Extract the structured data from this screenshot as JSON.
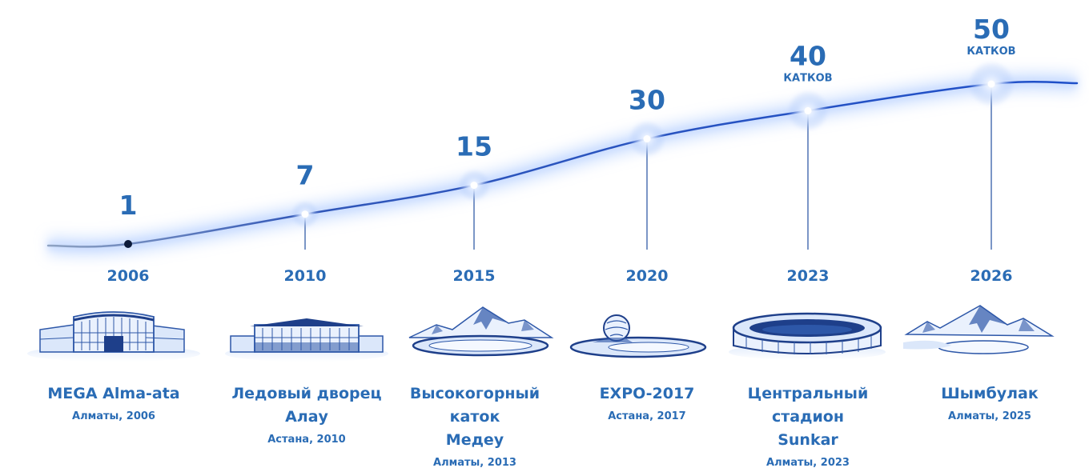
{
  "chart_data": {
    "type": "line",
    "title": "",
    "xlabel": "",
    "ylabel": "",
    "x": [
      "2006",
      "2010",
      "2015",
      "2020",
      "2023",
      "2026"
    ],
    "series": [
      {
        "values": [
          1,
          7,
          15,
          30,
          40,
          50
        ]
      }
    ],
    "value_labels": [
      "1",
      "7",
      "15",
      "30",
      "40",
      "50"
    ],
    "unit_labels": [
      "",
      "",
      "",
      "",
      "катков",
      "катков"
    ],
    "grid": false,
    "line_color": "#1e4fc9",
    "glow_color": "#a9c8ff",
    "text_color": "#2a6cb5"
  },
  "venues": [
    {
      "name_lines": [
        "MEGA Alma-ata"
      ],
      "location": "Алматы, 2006",
      "icon": "mall-building-icon"
    },
    {
      "name_lines": [
        "Ледовый дворец",
        "Алау"
      ],
      "location": "Астана, 2010",
      "icon": "ice-palace-icon"
    },
    {
      "name_lines": [
        "Высокогорный каток",
        "Медеу"
      ],
      "location": "Алматы, 2013",
      "icon": "mountain-rink-icon"
    },
    {
      "name_lines": [
        "EXPO-2017"
      ],
      "location": "Астана, 2017",
      "icon": "expo-sphere-icon"
    },
    {
      "name_lines": [
        "Центральный стадион",
        "Sunkar"
      ],
      "location": "Алматы, 2023",
      "icon": "stadium-icon"
    },
    {
      "name_lines": [
        "Шымбулак"
      ],
      "location": "Алматы, 2025",
      "icon": "mountain-resort-icon"
    }
  ]
}
